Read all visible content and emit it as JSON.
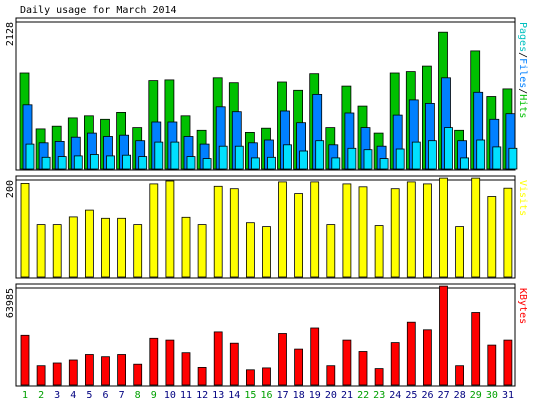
{
  "chart_data": {
    "type": "bar",
    "title": "Daily usage for March 2014",
    "categories": [
      "1",
      "2",
      "3",
      "4",
      "5",
      "6",
      "7",
      "8",
      "9",
      "10",
      "11",
      "12",
      "13",
      "14",
      "15",
      "16",
      "17",
      "18",
      "19",
      "20",
      "21",
      "22",
      "23",
      "24",
      "25",
      "26",
      "27",
      "28",
      "29",
      "30",
      "31"
    ],
    "weekend_days": [
      "1",
      "2",
      "8",
      "9",
      "15",
      "16",
      "22",
      "23",
      "29",
      "30"
    ],
    "colors": {
      "background": "#ffffff",
      "panel_border": "#000000",
      "grid": "#000000",
      "weekday_label": "#000080",
      "weekend_label": "#00a000",
      "hits": "#00c000",
      "files": "#0080ff",
      "pages": "#00e0ff",
      "visits": "#ffff00",
      "kbytes": "#ff0000"
    },
    "panels": [
      {
        "id": "hits",
        "ymax": 2128,
        "ymax_label": "2128",
        "legend": [
          {
            "name": "Pages",
            "color": "#00c0c0"
          },
          {
            "name": "Files",
            "color": "#0080ff"
          },
          {
            "name": "Hits",
            "color": "#00c000"
          }
        ],
        "series": [
          {
            "name": "Hits",
            "color": "#00c000",
            "values": [
              1390,
              580,
              620,
              740,
              770,
              720,
              820,
              600,
              1280,
              1290,
              770,
              560,
              1320,
              1250,
              530,
              590,
              1260,
              1140,
              1380,
              600,
              1200,
              910,
              520,
              1390,
              1410,
              1490,
              1980,
              560,
              1710,
              1050,
              1160
            ]
          },
          {
            "name": "Files",
            "color": "#0080ff",
            "values": [
              930,
              380,
              400,
              460,
              520,
              470,
              490,
              410,
              680,
              680,
              470,
              360,
              900,
              830,
              380,
              420,
              840,
              670,
              1080,
              350,
              810,
              600,
              330,
              780,
              1000,
              950,
              1320,
              410,
              1110,
              720,
              800
            ]
          },
          {
            "name": "Pages",
            "color": "#00e0ff",
            "values": [
              360,
              170,
              180,
              190,
              210,
              190,
              200,
              180,
              390,
              390,
              180,
              150,
              330,
              330,
              160,
              170,
              350,
              260,
              410,
              160,
              300,
              280,
              150,
              290,
              390,
              410,
              600,
              160,
              420,
              320,
              300
            ]
          }
        ]
      },
      {
        "id": "visits",
        "ymax": 200,
        "ymax_label": "200",
        "legend": [
          {
            "name": "Visits",
            "color": "#ffff00"
          }
        ],
        "series": [
          {
            "name": "Visits",
            "color": "#ffff00",
            "values": [
              193,
              108,
              108,
              124,
              138,
              121,
              121,
              108,
              192,
              198,
              123,
              108,
              187,
              182,
              112,
              104,
              196,
              172,
              196,
              108,
              192,
              186,
              106,
              182,
              196,
              192,
              211,
              104,
              204,
              166,
              183
            ]
          }
        ]
      },
      {
        "id": "kbytes",
        "ymax": 63985,
        "ymax_label": "63985",
        "legend": [
          {
            "name": "KBytes",
            "color": "#ff0000"
          }
        ],
        "series": [
          {
            "name": "KBytes",
            "color": "#ff0000",
            "values": [
              32800,
              12700,
              14500,
              16500,
              20100,
              18700,
              20100,
              13700,
              30800,
              29600,
              21300,
              11600,
              35000,
              27600,
              10000,
              11300,
              34000,
              23700,
              37600,
              12700,
              29600,
              22100,
              10800,
              28000,
              41400,
              36400,
              70000,
              12700,
              47800,
              26300,
              29600
            ]
          }
        ]
      }
    ]
  }
}
